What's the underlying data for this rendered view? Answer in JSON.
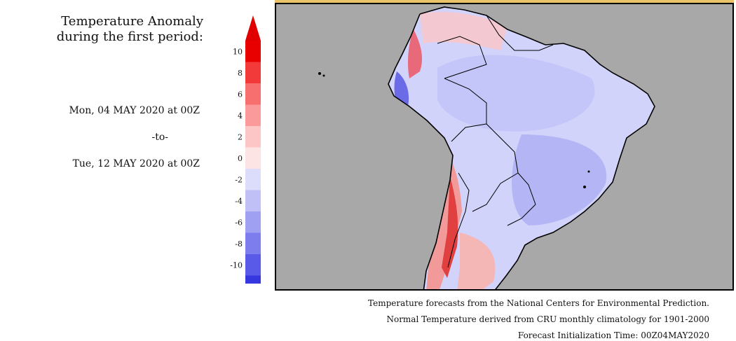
{
  "title": {
    "line1": "Temperature Anomaly",
    "line2": "during the first period:"
  },
  "period": {
    "start": "Mon, 04 MAY 2020 at 00Z",
    "separator": "-to-",
    "end": "Tue, 12 MAY 2020 at 00Z"
  },
  "legend": {
    "ticks": [
      "10",
      "8",
      "6",
      "4",
      "2",
      "0",
      "-2",
      "-4",
      "-6",
      "-8",
      "-10"
    ],
    "colors_warm": [
      "#e80000",
      "#f23a3a",
      "#f76f6f",
      "#fa9a9a",
      "#fcc6c6",
      "#fde4e4"
    ],
    "colors_cool": [
      "#dcdcfb",
      "#c0c0f7",
      "#a0a0f3",
      "#7d7dee",
      "#5a5ae8",
      "#3737e0"
    ],
    "arrow_warm": "#e00000",
    "arrow_cool": "#2e2ee8"
  },
  "map": {
    "ocean_color": "#a8a8a8",
    "land_base_color": "#d2d3fb",
    "icon": "south-america-anomaly-map"
  },
  "footer": {
    "line1": "Temperature forecasts from the National Centers for Environmental Prediction.",
    "line2": "Normal Temperature derived from CRU monthly climatology for 1901-2000",
    "line3": "Forecast Initialization Time: 00Z04MAY2020"
  }
}
